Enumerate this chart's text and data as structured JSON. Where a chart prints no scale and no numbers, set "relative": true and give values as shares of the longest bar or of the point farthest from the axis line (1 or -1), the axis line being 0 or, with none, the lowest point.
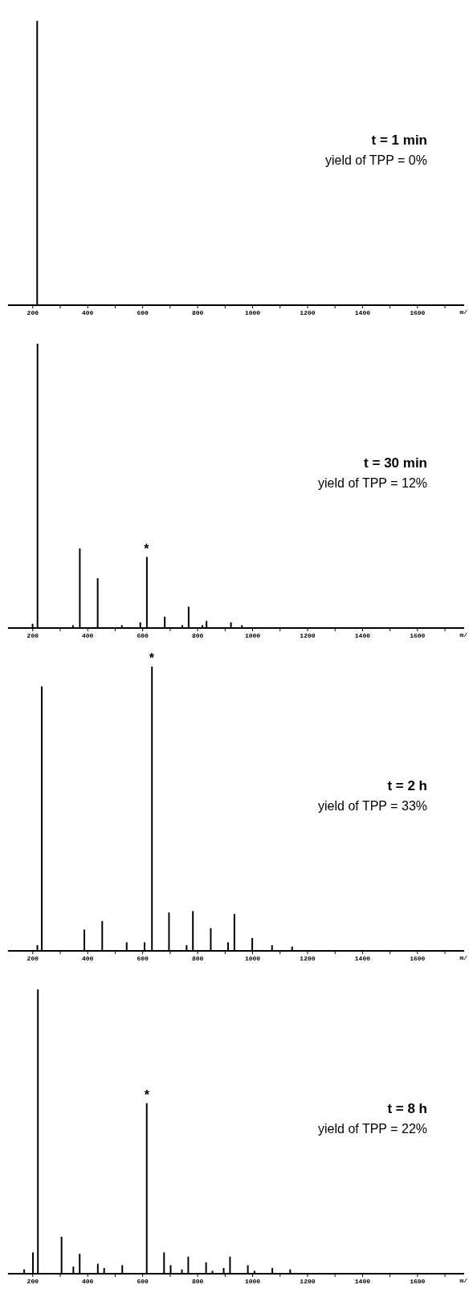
{
  "chart_data": [
    {
      "type": "bar",
      "title": "t = 1 min",
      "subtitle": "yield of TPP = 0%",
      "xlabel": "m/",
      "relative": true,
      "color": "#000000",
      "x": [
        216
      ],
      "values": [
        1.0
      ],
      "xlim": [
        110,
        1770
      ],
      "xticks": [
        200,
        {
          "value": 300,
          "label": null
        },
        400,
        {
          "value": 500,
          "label": null
        },
        600,
        {
          "value": 700,
          "label": null
        },
        800,
        {
          "value": 900,
          "label": null
        },
        1000,
        {
          "value": 1100,
          "label": null
        },
        1200,
        {
          "value": 1300,
          "label": null
        },
        1400,
        {
          "value": 1500,
          "label": null
        },
        1600,
        {
          "value": 1700,
          "label": null
        }
      ]
    },
    {
      "type": "bar",
      "title": "t = 30 min",
      "subtitle": "yield of TPP = 12%",
      "xlabel": "m/",
      "relative": true,
      "color": "#000000",
      "x": [
        198,
        216,
        345,
        370,
        435,
        523,
        590,
        614,
        679,
        743,
        766,
        816,
        831,
        920,
        960
      ],
      "values": [
        0.015,
        1.0,
        0.01,
        0.28,
        0.175,
        0.01,
        0.02,
        0.25,
        0.04,
        0.01,
        0.075,
        0.01,
        0.025,
        0.02,
        0.01
      ],
      "annotations": [
        {
          "text": "*",
          "x": 614,
          "y": 0.25
        }
      ],
      "xlim": [
        110,
        1770
      ],
      "xticks": [
        200,
        {
          "value": 300,
          "label": null
        },
        400,
        {
          "value": 500,
          "label": null
        },
        600,
        {
          "value": 700,
          "label": null
        },
        800,
        {
          "value": 900,
          "label": null
        },
        1000,
        {
          "value": 1100,
          "label": null
        },
        1200,
        {
          "value": 1300,
          "label": null
        },
        1400,
        {
          "value": 1500,
          "label": null
        },
        1600,
        {
          "value": 1700,
          "label": null
        }
      ]
    },
    {
      "type": "bar",
      "title": "t = 2 h",
      "subtitle": "yield of TPP = 33%",
      "xlabel": "m/",
      "relative": true,
      "color": "#000000",
      "x": [
        216,
        232,
        387,
        452,
        541,
        606,
        633,
        695,
        759,
        782,
        847,
        910,
        933,
        998,
        1070,
        1143
      ],
      "values": [
        0.02,
        0.93,
        0.075,
        0.105,
        0.03,
        0.03,
        1.0,
        0.135,
        0.02,
        0.14,
        0.08,
        0.03,
        0.13,
        0.045,
        0.02,
        0.015
      ],
      "annotations": [
        {
          "text": "*",
          "x": 633,
          "y": 1.0
        }
      ],
      "xlim": [
        110,
        1770
      ],
      "xticks": [
        200,
        {
          "value": 300,
          "label": null
        },
        400,
        {
          "value": 500,
          "label": null
        },
        600,
        {
          "value": 700,
          "label": null
        },
        800,
        {
          "value": 900,
          "label": null
        },
        1000,
        {
          "value": 1100,
          "label": null
        },
        1200,
        {
          "value": 1300,
          "label": null
        },
        1400,
        {
          "value": 1500,
          "label": null
        },
        1600,
        {
          "value": 1700,
          "label": null
        }
      ]
    },
    {
      "type": "bar",
      "title": "t = 8 h",
      "subtitle": "yield of TPP = 22%",
      "xlabel": "m/",
      "relative": true,
      "color": "#000000",
      "x": [
        169,
        201,
        219,
        305,
        348,
        371,
        437,
        460,
        526,
        615,
        678,
        702,
        743,
        766,
        831,
        854,
        895,
        918,
        983,
        1007,
        1072,
        1137
      ],
      "values": [
        0.015,
        0.075,
        1.0,
        0.13,
        0.025,
        0.07,
        0.035,
        0.02,
        0.03,
        0.6,
        0.075,
        0.03,
        0.015,
        0.06,
        0.04,
        0.01,
        0.02,
        0.06,
        0.03,
        0.01,
        0.02,
        0.015
      ],
      "annotations": [
        {
          "text": "*",
          "x": 615,
          "y": 0.6
        }
      ],
      "xlim": [
        110,
        1770
      ],
      "xticks": [
        200,
        {
          "value": 300,
          "label": null
        },
        400,
        {
          "value": 500,
          "label": null
        },
        600,
        {
          "value": 700,
          "label": null
        },
        800,
        {
          "value": 900,
          "label": null
        },
        1000,
        {
          "value": 1100,
          "label": null
        },
        1200,
        {
          "value": 1300,
          "label": null
        },
        1400,
        {
          "value": 1500,
          "label": null
        },
        1600,
        {
          "value": 1700,
          "label": null
        }
      ]
    }
  ]
}
